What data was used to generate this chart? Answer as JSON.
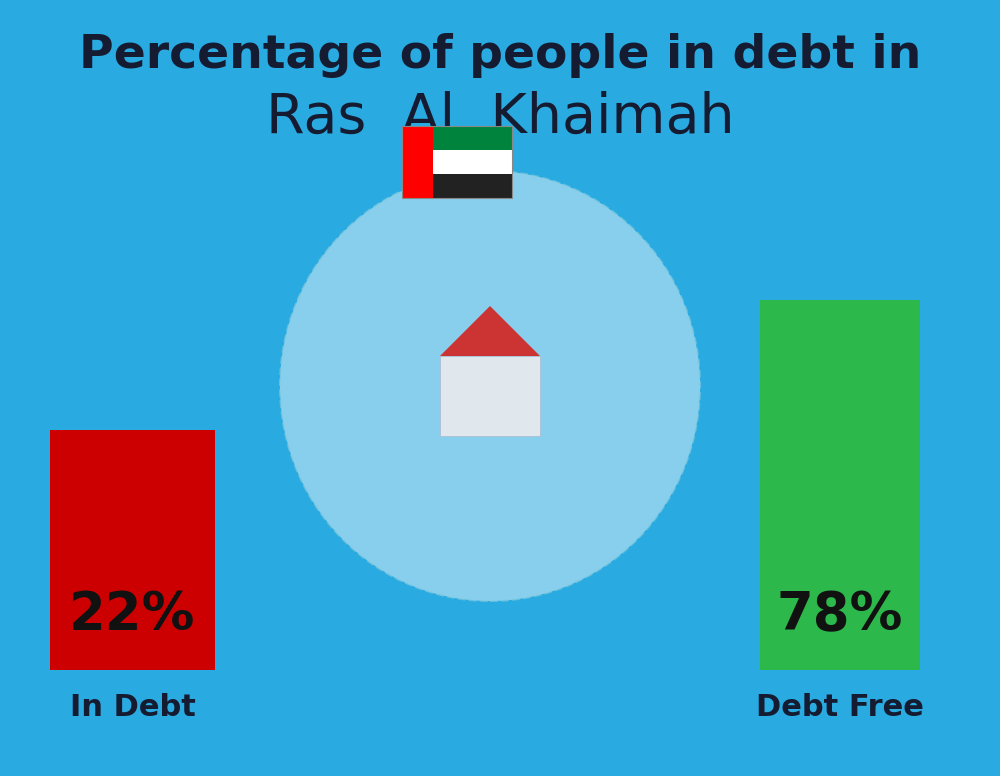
{
  "title_line1": "Percentage of people in debt in",
  "title_line2": "Ras  Al  Khaimah",
  "background_color": "#29ABE2",
  "bar1_value": 22,
  "bar1_label": "22%",
  "bar1_color": "#CC0000",
  "bar1_caption": "In Debt",
  "bar2_value": 78,
  "bar2_label": "78%",
  "bar2_color": "#2DB84B",
  "bar2_caption": "Debt Free",
  "title_color": "#151B30",
  "label_color": "#111111",
  "caption_color": "#151B30",
  "title_fontsize": 34,
  "subtitle_fontsize": 40,
  "bar_label_fontsize": 38,
  "caption_fontsize": 22,
  "ellipse_color": "#E8F4FB",
  "ellipse_edge": "#AADDEE"
}
